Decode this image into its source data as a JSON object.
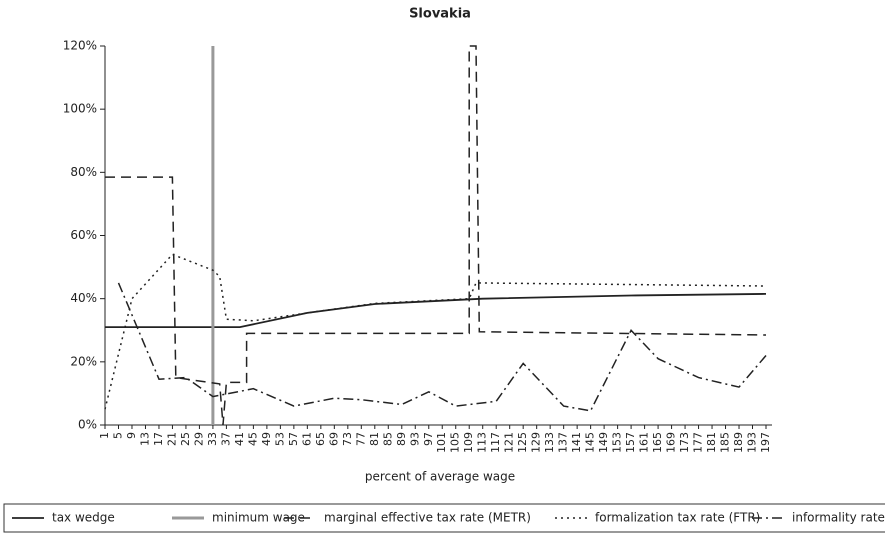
{
  "chart_data": {
    "type": "line",
    "title": "Slovakia",
    "x_label": "percent of average wage",
    "xlim": [
      1,
      197
    ],
    "xticks": [
      1,
      5,
      9,
      13,
      17,
      21,
      25,
      29,
      33,
      37,
      41,
      45,
      49,
      53,
      57,
      61,
      65,
      69,
      73,
      77,
      81,
      85,
      89,
      93,
      97,
      101,
      105,
      109,
      113,
      117,
      121,
      125,
      129,
      133,
      137,
      141,
      145,
      149,
      153,
      157,
      161,
      165,
      169,
      173,
      177,
      181,
      185,
      189,
      193,
      197
    ],
    "ylim": [
      0,
      120
    ],
    "yticks": [
      {
        "value": 0,
        "label": "0%"
      },
      {
        "value": 20,
        "label": "20%"
      },
      {
        "value": 40,
        "label": "40%"
      },
      {
        "value": 60,
        "label": "60%"
      },
      {
        "value": 80,
        "label": "80%"
      },
      {
        "value": 100,
        "label": "100%"
      },
      {
        "value": 120,
        "label": "120%"
      }
    ],
    "series": [
      {
        "name": "tax wedge",
        "color": "#222222",
        "style": "solid",
        "width": 1.8,
        "x": [
          1,
          41,
          61,
          81,
          113,
          157,
          197
        ],
        "values": [
          31,
          31,
          35.5,
          38.3,
          40,
          41,
          41.5
        ]
      },
      {
        "name": "minimum wage",
        "color": "#999999",
        "style": "solid",
        "width": 3,
        "x": [
          33,
          33
        ],
        "values": [
          0,
          120
        ]
      },
      {
        "name": "marginal effective tax rate (METR)",
        "color": "#222222",
        "style": "dashed",
        "width": 1.5,
        "x": [
          1,
          21,
          22,
          35,
          36,
          37,
          43,
          43,
          109,
          109,
          111,
          112,
          197
        ],
        "values": [
          78.5,
          78.5,
          15,
          13,
          0,
          13.5,
          13.5,
          29,
          29,
          120,
          120,
          29.5,
          28.5
        ]
      },
      {
        "name": "formalization tax rate (FTR)",
        "color": "#222222",
        "style": "dotted",
        "width": 1.5,
        "x": [
          1,
          9,
          21,
          33,
          35,
          37,
          45,
          61,
          81,
          109,
          111,
          197
        ],
        "values": [
          5,
          40,
          54,
          49,
          47,
          33.5,
          33,
          35.5,
          38.5,
          40,
          45,
          44
        ]
      },
      {
        "name": "informality rate",
        "color": "#222222",
        "style": "dashdot",
        "width": 1.5,
        "x": [
          5,
          17,
          25,
          33,
          45,
          57,
          69,
          77,
          89,
          97,
          105,
          117,
          125,
          137,
          145,
          157,
          165,
          177,
          189,
          197
        ],
        "values": [
          45,
          14.5,
          15,
          9,
          11.5,
          6,
          8.5,
          8,
          6.5,
          10.5,
          6,
          7.5,
          19.5,
          6,
          4.5,
          30,
          21,
          15,
          12,
          22
        ]
      }
    ]
  }
}
